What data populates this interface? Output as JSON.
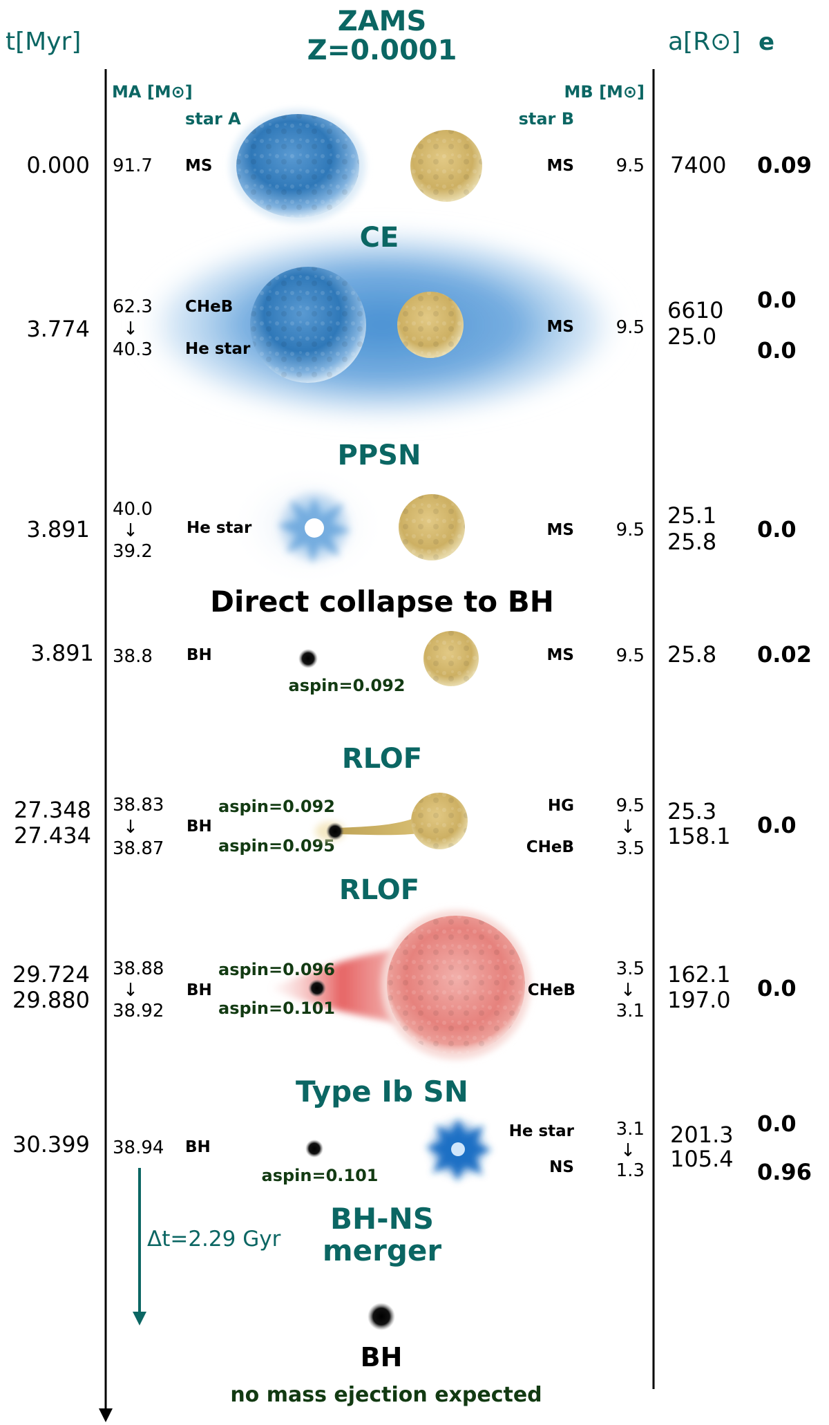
{
  "colors": {
    "teal": "#0b6663",
    "dark_green": "#123a12",
    "black": "#000000",
    "blue_star": "#3f86c4",
    "blue_star_light": "#a9cdea",
    "yellow_star": "#d9bf73",
    "yellow_star_dark": "#b89a45",
    "red_giant": "#e87a78",
    "red_giant_light": "#f6c4c0",
    "envelope": "#4a93d6"
  },
  "header": {
    "title_line1": "ZAMS",
    "title_line2": "Z=0.0001",
    "time_axis_label": "t[Myr]",
    "separation_label": "a[R⊙]",
    "eccentricity_label": "e",
    "mass_a_label": "MA [M⊙]",
    "mass_b_label": "MB [M⊙]",
    "star_a_label": "star A",
    "star_b_label": "star B"
  },
  "stages": {
    "zams": {
      "t": "0.000",
      "ma": "91.7",
      "type_a": "MS",
      "type_b": "MS",
      "mb": "9.5",
      "a": "7400",
      "e": "0.09"
    },
    "ce": {
      "title": "CE",
      "t": "3.774",
      "ma_from": "62.3",
      "ma_to": "40.3",
      "type_a_from": "CHeB",
      "type_a_to": "He star",
      "type_b": "MS",
      "mb": "9.5",
      "a_from": "6610",
      "a_to": "25.0",
      "e_from": "0.0",
      "e_to": "0.0"
    },
    "ppsn": {
      "title": "PPSN",
      "t": "3.891",
      "ma_from": "40.0",
      "ma_to": "39.2",
      "type_a": "He star",
      "type_b": "MS",
      "mb": "9.5",
      "a_from": "25.1",
      "a_to": "25.8",
      "e": "0.0"
    },
    "collapse": {
      "title": "Direct collapse to BH",
      "t": "3.891",
      "ma": "38.8",
      "type_a": "BH",
      "spin": "aspin=0.092",
      "type_b": "MS",
      "mb": "9.5",
      "a": "25.8",
      "e": "0.02"
    },
    "rlof1": {
      "title": "RLOF",
      "t_from": "27.348",
      "t_to": "27.434",
      "ma_from": "38.83",
      "ma_to": "38.87",
      "type_a": "BH",
      "spin_from": "aspin=0.092",
      "spin_to": "aspin=0.095",
      "type_b_from": "HG",
      "type_b_to": "CHeB",
      "mb_from": "9.5",
      "mb_to": "3.5",
      "a_from": "25.3",
      "a_to": "158.1",
      "e": "0.0"
    },
    "rlof2": {
      "title": "RLOF",
      "t_from": "29.724",
      "t_to": "29.880",
      "ma_from": "38.88",
      "ma_to": "38.92",
      "type_a": "BH",
      "spin_from": "aspin=0.096",
      "spin_to": "aspin=0.101",
      "type_b": "CHeB",
      "mb_from": "3.5",
      "mb_to": "3.1",
      "a_from": "162.1",
      "a_to": "197.0",
      "e": "0.0"
    },
    "sn": {
      "title": "Type Ib SN",
      "t": "30.399",
      "ma": "38.94",
      "type_a": "BH",
      "spin": "aspin=0.101",
      "type_b_from": "He star",
      "type_b_to": "NS",
      "mb_from": "3.1",
      "mb_to": "1.3",
      "a_from": "201.3",
      "a_to": "105.4",
      "e_from": "0.0",
      "e_to": "0.96"
    },
    "merger": {
      "title_line1": "BH-NS",
      "title_line2": "merger",
      "delay": "Δt=2.29 Gyr",
      "remnant": "BH",
      "note": "no mass ejection expected"
    }
  },
  "arrow_glyph": "↓"
}
